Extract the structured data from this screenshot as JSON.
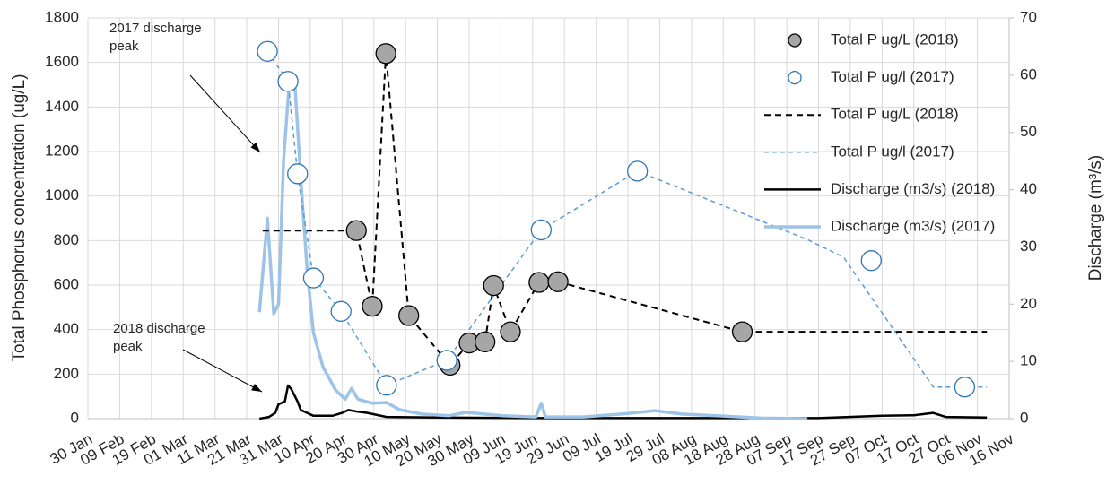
{
  "chart_data": {
    "type": "line",
    "ylabel": "Total Phosphorus concentration (ug/L)",
    "y2label": "Discharge (m³/s)",
    "xlim": [
      30,
      320
    ],
    "xticks": [
      {
        "value": 30,
        "label": "30 Jan"
      },
      {
        "value": 40,
        "label": "09 Feb"
      },
      {
        "value": 50,
        "label": "19 Feb"
      },
      {
        "value": 60,
        "label": "01 Mar"
      },
      {
        "value": 70,
        "label": "11 Mar"
      },
      {
        "value": 80,
        "label": "21 Mar"
      },
      {
        "value": 90,
        "label": "31 Mar"
      },
      {
        "value": 100,
        "label": "10 Apr"
      },
      {
        "value": 110,
        "label": "20 Apr"
      },
      {
        "value": 120,
        "label": "30 Apr"
      },
      {
        "value": 130,
        "label": "10 May"
      },
      {
        "value": 140,
        "label": "20 May"
      },
      {
        "value": 150,
        "label": "30 May"
      },
      {
        "value": 160,
        "label": "09 Jun"
      },
      {
        "value": 170,
        "label": "19 Jun"
      },
      {
        "value": 180,
        "label": "29 Jun"
      },
      {
        "value": 190,
        "label": "09 Jul"
      },
      {
        "value": 200,
        "label": "19 Jul"
      },
      {
        "value": 210,
        "label": "29 Jul"
      },
      {
        "value": 220,
        "label": "08 Aug"
      },
      {
        "value": 230,
        "label": "18 Aug"
      },
      {
        "value": 240,
        "label": "28 Aug"
      },
      {
        "value": 250,
        "label": "07 Sep"
      },
      {
        "value": 260,
        "label": "17 Sep"
      },
      {
        "value": 270,
        "label": "27 Sep"
      },
      {
        "value": 280,
        "label": "07 Oct"
      },
      {
        "value": 290,
        "label": "17 Oct"
      },
      {
        "value": 300,
        "label": "27 Oct"
      },
      {
        "value": 310,
        "label": "06 Nov"
      },
      {
        "value": 320,
        "label": "16 Nov"
      }
    ],
    "ylim": [
      0,
      1800
    ],
    "yticks": [
      0,
      200,
      400,
      600,
      800,
      1000,
      1200,
      1400,
      1600,
      1800
    ],
    "y2lim": [
      0,
      70
    ],
    "y2ticks": [
      0,
      10,
      20,
      30,
      40,
      50,
      60,
      70
    ],
    "grid": true,
    "legend": "upper right",
    "annotations": [
      {
        "text": "2017 discharge peak"
      },
      {
        "text": "2018 discharge peak"
      }
    ],
    "series": [
      {
        "name": "Total P ug/L (2018)",
        "color": "#a6a6a6",
        "marker": "filled",
        "x": [
          114.5,
          119.5,
          123.8,
          131,
          144,
          150,
          155,
          157.7,
          163,
          172,
          178,
          236
        ],
        "values": [
          845,
          505,
          1640,
          463,
          240,
          340,
          345,
          598,
          390,
          612,
          615,
          390
        ]
      },
      {
        "name": "Total P ug/l (2017)",
        "color": "#2e75b6",
        "marker": "open",
        "x": [
          86.5,
          93,
          96,
          101,
          109.7,
          124,
          143,
          172.7,
          203,
          276.6,
          306
        ],
        "values": [
          1650,
          1515,
          1100,
          632,
          482,
          150,
          262,
          848,
          1112,
          710,
          142
        ]
      },
      {
        "name": "Total P ug/L (2018)",
        "color": "#000000",
        "linestyle": "dashed",
        "x": [
          85,
          114.5,
          119.5,
          123.8,
          131,
          144,
          150,
          155,
          157.7,
          163,
          172,
          178,
          236,
          313
        ],
        "values": [
          845,
          845,
          505,
          1640,
          463,
          240,
          340,
          345,
          598,
          390,
          612,
          615,
          390,
          390
        ]
      },
      {
        "name": "Total P ug/l (2017)",
        "color": "#5b9bd5",
        "linestyle": "dashed",
        "x": [
          86.5,
          93,
          96,
          101,
          109.7,
          124,
          143,
          172.7,
          203,
          256.4,
          267.9,
          296.1,
          313
        ],
        "values": [
          1650,
          1515,
          1100,
          632,
          482,
          150,
          262,
          848,
          1112,
          805,
          725,
          142,
          142
        ]
      },
      {
        "name": "Discharge (m3/s) (2018)",
        "color": "#000000",
        "linestyle": "solid",
        "axis": "y2",
        "x": [
          84,
          87,
          89,
          90,
          92,
          93,
          94,
          96,
          97,
          101,
          107,
          110,
          112,
          115,
          118,
          124,
          140,
          170,
          200,
          230,
          260,
          280,
          290,
          296,
          300,
          313
        ],
        "values": [
          0,
          0.3,
          1,
          2.5,
          3,
          5.8,
          5.2,
          3,
          1.5,
          0.5,
          0.5,
          1,
          1.5,
          1.2,
          1,
          0.3,
          0.2,
          0.1,
          0.1,
          0.1,
          0.1,
          0.5,
          0.6,
          1,
          0.3,
          0.2
        ]
      },
      {
        "name": "Discharge (m3/s) (2017)",
        "color": "#9dc3e6",
        "linestyle": "solid",
        "axis": "y2",
        "x": [
          84,
          86.5,
          88.5,
          90,
          91.6,
          93.3,
          95,
          97,
          99,
          101,
          104,
          108,
          111,
          113,
          115,
          119.5,
          124,
          128,
          135,
          143.6,
          149,
          160.5,
          171,
          172.7,
          174,
          186,
          200,
          208.5,
          217,
          228,
          242,
          256.5
        ],
        "values": [
          18.6,
          35,
          18.3,
          20,
          45,
          58,
          59.8,
          41.8,
          26,
          15,
          9,
          5,
          3.4,
          5.3,
          3.4,
          2.7,
          2.8,
          1.6,
          0.8,
          0.5,
          1.1,
          0.5,
          0.3,
          2.7,
          0.3,
          0.3,
          0.9,
          1.4,
          0.8,
          0.5,
          0.1,
          0
        ]
      }
    ]
  }
}
